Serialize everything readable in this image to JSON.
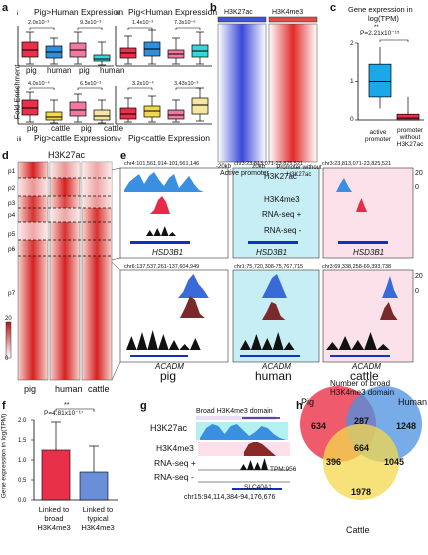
{
  "panels": {
    "a": {
      "letter": "a",
      "ylabel": "Fold Enrichment",
      "sub": [
        {
          "roman": "i",
          "title": "Pig>Human Expression",
          "p1": "2.0x10⁻³",
          "p2": "9.3x10⁻³",
          "cats": [
            "pig",
            "human",
            "pig",
            "human"
          ]
        },
        {
          "roman": "ii",
          "title": "Pig<Human Expression",
          "p1": "1.4x10⁻³",
          "p2": "7.3x10⁻⁶",
          "cats": [
            "pig",
            "human",
            "pig",
            "human"
          ]
        },
        {
          "roman": "iii",
          "title": "Pig>cattle Expression",
          "p1": "4.0x10⁻⁴",
          "p2": "6.5x10⁻²",
          "cats": [
            "pig",
            "cattle",
            "pig",
            "cattle"
          ]
        },
        {
          "roman": "iv",
          "title": "Pig<cattle Expression",
          "p1": "3.2x10⁻⁴",
          "p2": "3.43x10⁻³",
          "cats": [
            "pig",
            "cattle",
            "pig",
            "cattle"
          ]
        }
      ]
    },
    "b": {
      "letter": "b",
      "col1": "H3K27ac",
      "col2": "H3K4me3",
      "left_tick": "-20kb",
      "right_tick": "20kb",
      "label_active": "Active promoter",
      "label_without": "Promoter without H3K27ac"
    },
    "c": {
      "letter": "c",
      "title1": "Gene expression in",
      "title2": "log(TPM)",
      "sig": "**",
      "pval": "P=2.21x10⁻¹⁵",
      "ticks": [
        "2",
        "1",
        "0"
      ],
      "cat1": "active promoter",
      "cat2": "promoter without H3K27ac"
    },
    "d": {
      "letter": "d",
      "title": "H3K27ac",
      "clusters": [
        "p1",
        "p2",
        "p3",
        "p4",
        "p5",
        "p6",
        "p7"
      ],
      "cols": [
        "pig",
        "human",
        "cattle"
      ],
      "scale_max": "20",
      "scale_min": "0"
    },
    "e": {
      "letter": "e",
      "top": [
        {
          "coord": "chr4:101,561,914-101,561,146",
          "gene": "HSD3B1"
        },
        {
          "coord": "chr3:23,813,071-23,825,521",
          "gene": "HSD3B1"
        },
        {
          "coord": "chr3:23,813,071-23,825,521",
          "gene": "HSD3B1"
        }
      ],
      "track_names": [
        "H3K27ac",
        "H3K4me3",
        "RNA-seq +",
        "RNA-seq -"
      ],
      "bottom": [
        {
          "coord": "chr6:137,537,261-137,604,949",
          "gene": "ACADM",
          "species": "pig"
        },
        {
          "coord": "chr1:75,720,308-75,767,715",
          "gene": "ACADM",
          "species": "human"
        },
        {
          "coord": "chr3:69,338,258-69,393,738",
          "gene": "ACADM",
          "species": "cattle"
        }
      ],
      "scale_hi": "20",
      "scale_lo": "0"
    },
    "f": {
      "letter": "f",
      "ylabel": "Gene expression in log(TPM)",
      "sig": "**",
      "pval": "P=4.81x10⁻¹⁷",
      "ticks": [
        "2.0",
        "1.5",
        "1.0",
        "0.5",
        "0.0"
      ],
      "cat1": "Linked to broad H3K4me3",
      "cat2": "Linked to typical H3K4me3"
    },
    "g": {
      "letter": "g",
      "domain_label": "Broad H3K4me3 domain",
      "tracks": [
        "H3K27ac",
        "H3K4me3",
        "RNA-seq +",
        "RNA-seq -"
      ],
      "tpm": "TPM:956",
      "gene": "SLC40A1",
      "coord": "chr15:94,114,384-94,176,676"
    },
    "h": {
      "letter": "h",
      "title1": "Number of broad",
      "title2": "H3K4me3 domain",
      "set_pig": "Pig",
      "set_human": "Human",
      "set_cattle": "Cattle",
      "n_pig_only": "634",
      "n_human_only": "1248",
      "n_cattle_only": "1978",
      "n_pig_human": "287",
      "n_pig_cattle": "396",
      "n_human_cattle": "1045",
      "n_all": "664"
    }
  },
  "chart_data": [
    {
      "type": "bar",
      "categories": [
        "Linked to broad H3K4me3",
        "Linked to typical H3K4me3"
      ],
      "values": [
        1.25,
        0.7
      ],
      "errors": [
        0.7,
        0.65
      ],
      "ylabel": "Gene expression in log(TPM)",
      "ylim": [
        0,
        2.0
      ],
      "colors": [
        "#e8304a",
        "#6a8fd8"
      ]
    },
    {
      "type": "box",
      "categories": [
        "active promoter",
        "promoter without H3K27ac"
      ],
      "medians": [
        1.0,
        0.05
      ],
      "q1": [
        0.6,
        0.0
      ],
      "q3": [
        1.45,
        0.15
      ],
      "ylim": [
        0,
        2
      ],
      "colors": [
        "#1aa8e8",
        "#e8304a"
      ]
    }
  ],
  "colors": {
    "pig": "#e8304a",
    "human": "#2f8fdc",
    "cattle": "#f2d94a",
    "pink": "#f27aa0",
    "cyan": "#36d6d6",
    "heat": "#d8262a"
  }
}
